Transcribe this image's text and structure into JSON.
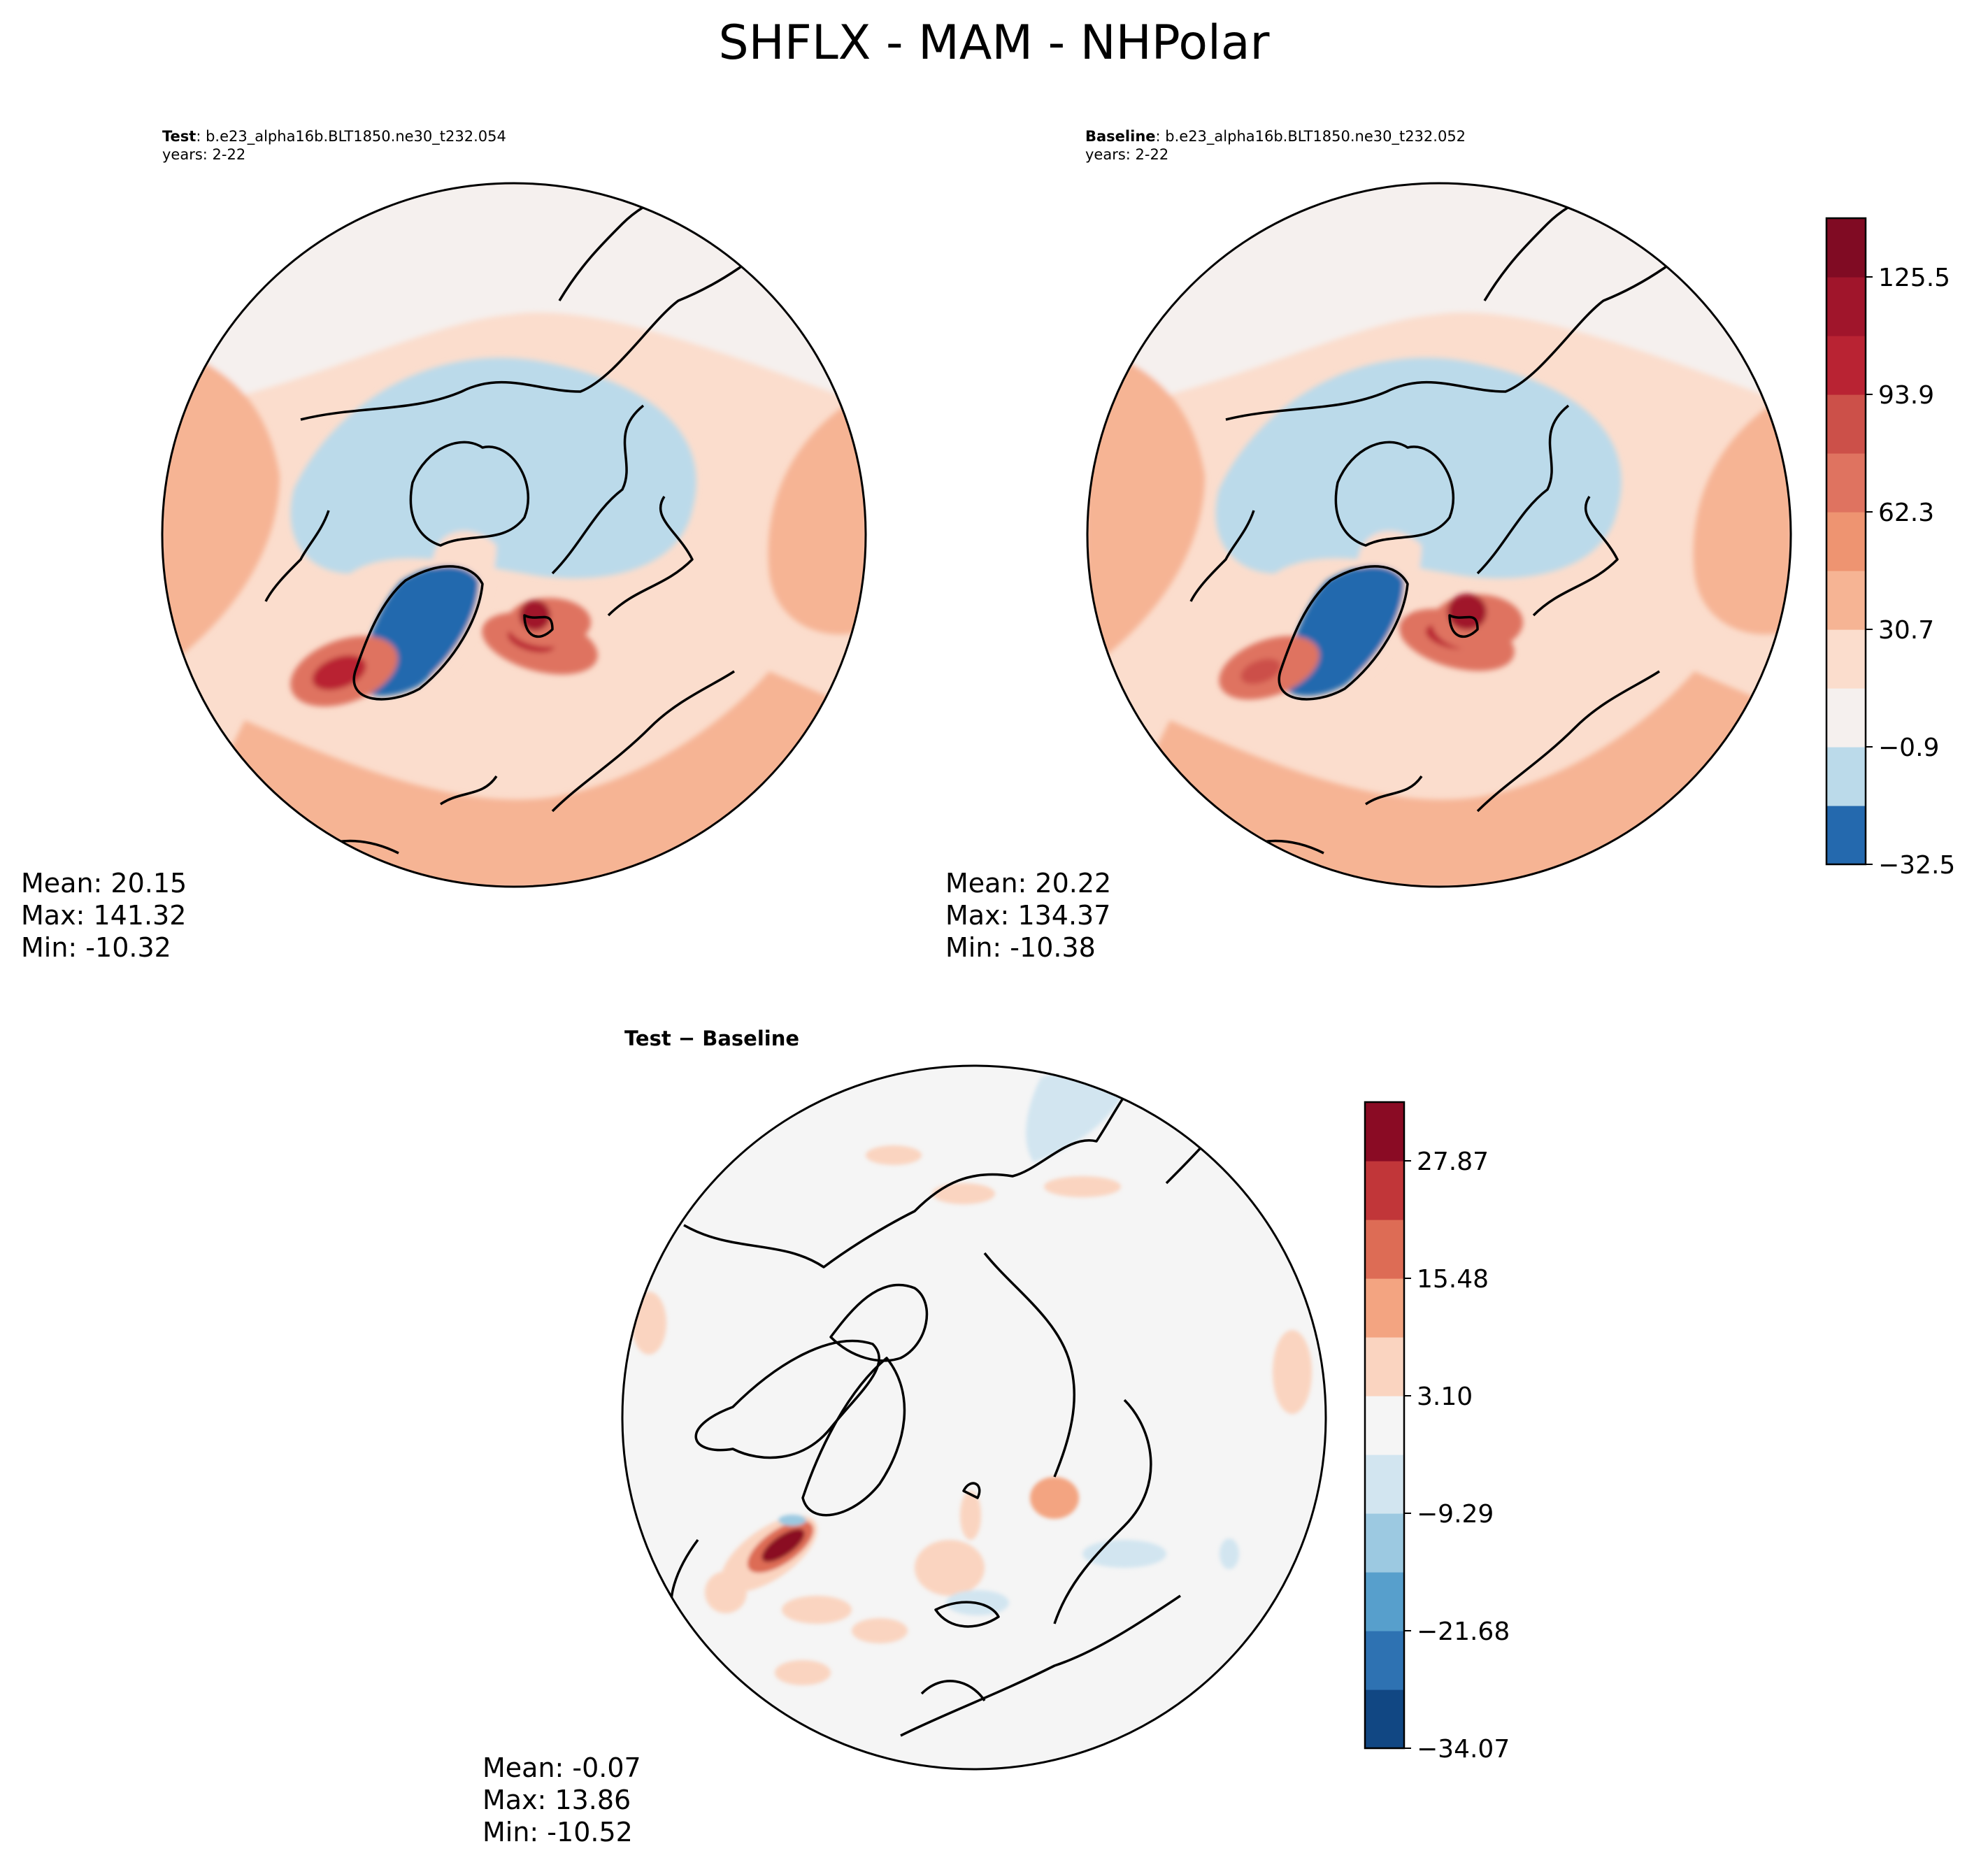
{
  "suptitle": "SHFLX - MAM - NHPolar",
  "panels": {
    "test": {
      "title_bold": "Test",
      "title_rest": ": b.e23_alpha16b.BLT1850.ne30_t232.054",
      "years": "years: 2-22",
      "mean": "Mean: 20.15",
      "max": "Max: 141.32",
      "min": "Min: -10.32"
    },
    "baseline": {
      "title_bold": "Baseline",
      "title_rest": ": b.e23_alpha16b.BLT1850.ne30_t232.052",
      "years": "years: 2-22",
      "mean": "Mean: 20.22",
      "max": "Max: 134.37",
      "min": "Min: -10.38"
    },
    "diff": {
      "title": "Test − Baseline",
      "mean": "Mean: -0.07",
      "max": "Max: 13.86",
      "min": "Min: -10.52"
    }
  },
  "chart_data": [
    {
      "type": "heatmap",
      "subtype": "polar-stereographic contour map",
      "region": "NHPolar",
      "title": "Test : b.e23_alpha16b.BLT1850.ne30_t232.054",
      "colormap": "RdBu_r",
      "stats": {
        "mean": 20.15,
        "max": 141.32,
        "min": -10.32
      }
    },
    {
      "type": "heatmap",
      "subtype": "polar-stereographic contour map",
      "region": "NHPolar",
      "title": "Baseline : b.e23_alpha16b.BLT1850.ne30_t232.052",
      "colormap": "RdBu_r",
      "stats": {
        "mean": 20.22,
        "max": 134.37,
        "min": -10.38
      },
      "colorbar": {
        "ticks": [
          "125.5",
          "93.9",
          "62.3",
          "30.7",
          "−0.9",
          "−32.5"
        ],
        "colors": [
          "#2469ae",
          "#bbdaea",
          "#f5f0ee",
          "#fbddcd",
          "#f6b494",
          "#ee9471",
          "#df7360",
          "#cc5049",
          "#b92333",
          "#a0152b",
          "#800b23"
        ]
      }
    },
    {
      "type": "heatmap",
      "subtype": "polar-stereographic contour map",
      "region": "NHPolar",
      "title": "Test − Baseline",
      "colormap": "RdBu_r",
      "stats": {
        "mean": -0.07,
        "max": 13.86,
        "min": -10.52
      },
      "colorbar": {
        "ticks": [
          "27.87",
          "15.48",
          "3.10",
          "−9.29",
          "−21.68",
          "−34.07"
        ],
        "colors": [
          "#114783",
          "#2e72b2",
          "#579fcc",
          "#9cc9e1",
          "#d2e5f0",
          "#f5f5f5",
          "#fad4c0",
          "#f3a481",
          "#dd6c55",
          "#c13639",
          "#8a0b24"
        ]
      }
    }
  ]
}
